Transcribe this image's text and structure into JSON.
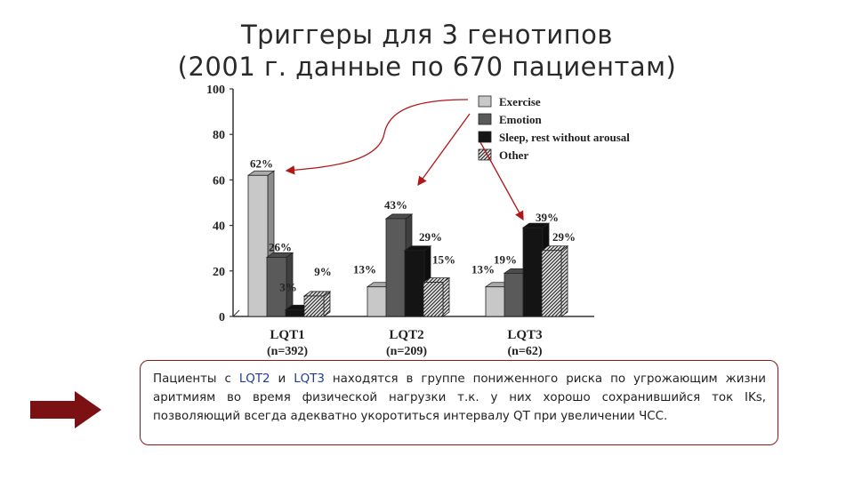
{
  "slide": {
    "title_line1": "Триггеры для 3 генотипов",
    "title_line2": "(2001 г. данные по 670 пациентам)"
  },
  "note": {
    "p1": "Пациенты с ",
    "h1": "LQT2",
    "p2": " и ",
    "h2": "LQT3",
    "p3": " находятся в группе пониженного риска по угрожающим жизни аритмиям во время физической нагрузки т.к. у них хорошо сохранившийся ток IKs, позволяющий всегда адекватно укоротиться интервалу QT при увеличении ЧСС.",
    "highlight_color": "#1f3f8f",
    "border_color": "#8b1a1a"
  },
  "arrow": {
    "icon": "right-arrow-icon",
    "color": "#7b1113"
  },
  "chart_data": {
    "type": "bar",
    "style": "3d",
    "title": "",
    "xlabel": "",
    "ylabel": "",
    "ylim": [
      0,
      100
    ],
    "yticks": [
      0,
      20,
      40,
      60,
      80,
      100
    ],
    "categories": [
      "LQT1",
      "LQT2",
      "LQT3"
    ],
    "category_sublabels": [
      "(n=392)",
      "(n=209)",
      "(n=62)"
    ],
    "legend_position": "top-right",
    "series": [
      {
        "name": "Exercise",
        "values": [
          62,
          13,
          13
        ],
        "labels": [
          "62%",
          "13%",
          "13%"
        ],
        "color": "#c8c8c8",
        "pattern": "solid"
      },
      {
        "name": "Emotion",
        "values": [
          26,
          43,
          19
        ],
        "labels": [
          "26%",
          "43%",
          "19%"
        ],
        "color": "#5a5a5a",
        "pattern": "solid"
      },
      {
        "name": "Sleep, rest without arousal",
        "values": [
          3,
          29,
          39
        ],
        "labels": [
          "3%",
          "29%",
          "39%"
        ],
        "color": "#141414",
        "pattern": "solid"
      },
      {
        "name": "Other",
        "values": [
          9,
          15,
          29
        ],
        "labels": [
          "9%",
          "15%",
          "29%"
        ],
        "color": "#8a8a8a",
        "pattern": "hatched"
      }
    ],
    "annotation_arrow_color": "#b01818"
  }
}
